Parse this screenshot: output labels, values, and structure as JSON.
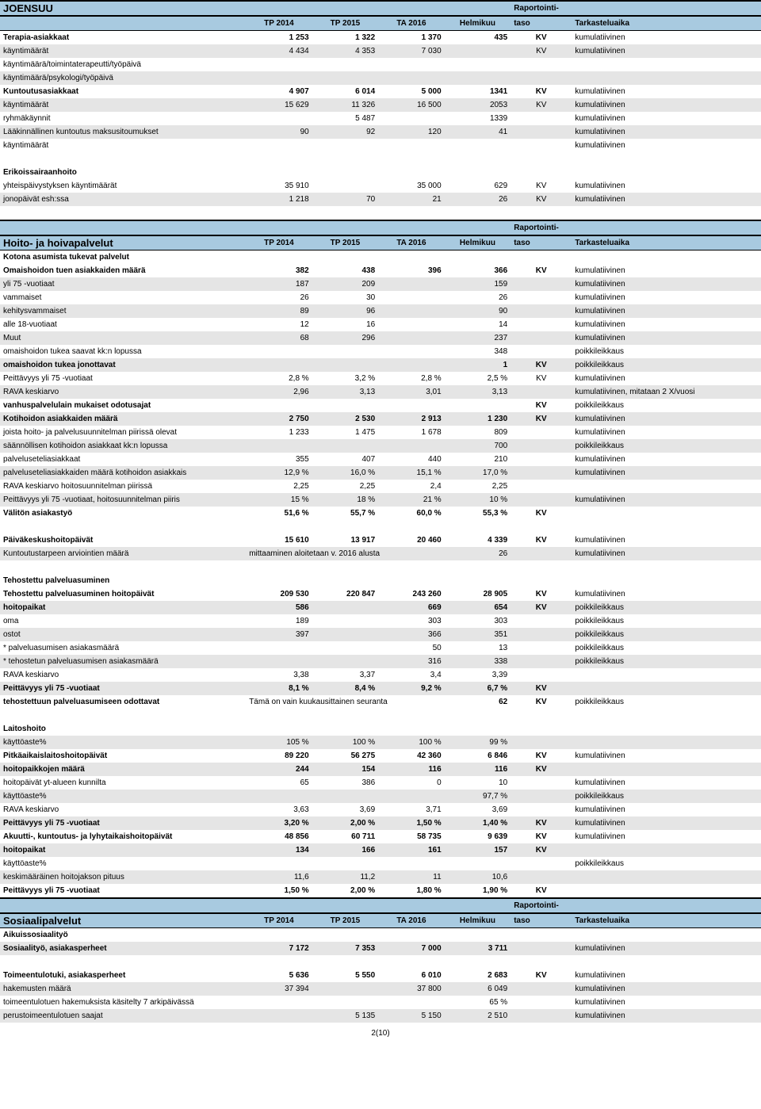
{
  "colors": {
    "header_bg": "#a8cae0",
    "shade_bg": "#e5e5e5",
    "border": "#000000"
  },
  "section1": {
    "title": "JOENSUU",
    "hdr": {
      "tp2014": "TP 2014",
      "tp2015": "TP 2015",
      "ta2016": "TA 2016",
      "helmi": "Helmikuu",
      "rapor": "Raportointi-",
      "taso": "taso",
      "tark": "Tarkasteluaika"
    },
    "rows": [
      {
        "l": "Terapia-asiakkaat",
        "b": true,
        "c1": "1 253",
        "c2": "1 322",
        "c3": "1 370",
        "c4": "435",
        "c5": "KV",
        "c6": "kumulatiivinen"
      },
      {
        "l": "käyntimäärät",
        "s": true,
        "c1": "4 434",
        "c2": "4 353",
        "c3": "7 030",
        "c4": "",
        "c5": "KV",
        "c6": "kumulatiivinen"
      },
      {
        "l": "käyntimäärä/toimintaterapeutti/työpäivä"
      },
      {
        "l": "käyntimäärä/psykologi/työpäivä",
        "s": true
      },
      {
        "l": "Kuntoutusasiakkaat",
        "b": true,
        "c1": "4 907",
        "c2": "6 014",
        "c3": "5 000",
        "c4": "1341",
        "c5": "KV",
        "c6": "kumulatiivinen"
      },
      {
        "l": "käyntimäärät",
        "s": true,
        "c1": "15 629",
        "c2": "11 326",
        "c3": "16 500",
        "c4": "2053",
        "c5": "KV",
        "c6": "kumulatiivinen"
      },
      {
        "l": "ryhmäkäynnit",
        "c2": "5 487",
        "c4": "1339",
        "c6": "kumulatiivinen"
      },
      {
        "l": "Lääkinnällinen kuntoutus maksusitoumukset",
        "s": true,
        "c1": "90",
        "c2": "92",
        "c3": "120",
        "c4": "41",
        "c6": "kumulatiivinen"
      },
      {
        "l": "käyntimäärät",
        "c6": "kumulatiivinen"
      }
    ]
  },
  "section2": {
    "heading": "Erikoissairaanhoito",
    "rows": [
      {
        "l": "yhteispäivystyksen käyntimäärät",
        "c1": "35 910",
        "c3": "35 000",
        "c4": "629",
        "c5": "KV",
        "c6": "kumulatiivinen"
      },
      {
        "l": "jonopäivät esh:ssa",
        "s": true,
        "c1": "1 218",
        "c2": "70",
        "c3": "21",
        "c4": "26",
        "c5": "KV",
        "c6": "kumulatiivinen"
      }
    ]
  },
  "section3": {
    "title": "Hoito- ja hoivapalvelut",
    "hdr": {
      "tp2014": "TP 2014",
      "tp2015": "TP 2015",
      "ta2016": "TA 2016",
      "helmi": "Helmikuu",
      "rapor": "Raportointi-",
      "taso": "taso",
      "tark": "Tarkasteluaika"
    },
    "sub1": "Kotona asumista tukevat palvelut",
    "rows1": [
      {
        "l": "Omaishoidon tuen asiakkaiden määrä",
        "b": true,
        "c1": "382",
        "c2": "438",
        "c3": "396",
        "c4": "366",
        "c5": "KV",
        "c6": "kumulatiivinen"
      },
      {
        "l": "yli 75 -vuotiaat",
        "s": true,
        "c1": "187",
        "c2": "209",
        "c4": "159",
        "c6": "kumulatiivinen"
      },
      {
        "l": "vammaiset",
        "c1": "26",
        "c2": "30",
        "c4": "26",
        "c6": "kumulatiivinen"
      },
      {
        "l": "kehitysvammaiset",
        "s": true,
        "c1": "89",
        "c2": "96",
        "c4": "90",
        "c6": "kumulatiivinen"
      },
      {
        "l": "alle 18-vuotiaat",
        "c1": "12",
        "c2": "16",
        "c4": "14",
        "c6": "kumulatiivinen"
      },
      {
        "l": "Muut",
        "s": true,
        "c1": "68",
        "c2": "296",
        "c4": "237",
        "c6": "kumulatiivinen"
      },
      {
        "l": "omaishoidon tukea saavat kk:n lopussa",
        "c4": "348",
        "c6": "poikkileikkaus"
      },
      {
        "l": "omaishoidon tukea jonottavat",
        "s": true,
        "b": true,
        "c4": "1",
        "c5": "KV",
        "c6": "poikkileikkaus"
      },
      {
        "l": "Peittävyys yli 75 -vuotiaat",
        "c1": "2,8 %",
        "c2": "3,2 %",
        "c3": "2,8 %",
        "c4": "2,5 %",
        "c5": "KV",
        "c6": "kumulatiivinen"
      },
      {
        "l": "RAVA keskiarvo",
        "s": true,
        "c1": "2,96",
        "c2": "3,13",
        "c3": "3,01",
        "c4": "3,13",
        "c6": "kumulatiivinen, mitataan 2 X/vuosi"
      },
      {
        "l": "vanhuspalvelulain mukaiset odotusajat",
        "b": true,
        "c5": "KV",
        "c6": "poikkileikkaus"
      },
      {
        "l": "Kotihoidon asiakkaiden määrä",
        "s": true,
        "b": true,
        "c1": "2 750",
        "c2": "2 530",
        "c3": "2 913",
        "c4": "1 230",
        "c5": "KV",
        "c6": "kumulatiivinen"
      },
      {
        "l": "joista hoito- ja palvelusuunnitelman piirissä olevat",
        "c1": "1 233",
        "c2": "1 475",
        "c3": "1 678",
        "c4": "809",
        "c6": "kumulatiivinen"
      },
      {
        "l": "säännöllisen kotihoidon asiakkaat kk:n lopussa",
        "s": true,
        "c4": "700",
        "c6": "poikkileikkaus"
      },
      {
        "l": "palveluseteliasiakkaat",
        "c1": "355",
        "c2": "407",
        "c3": "440",
        "c4": "210",
        "c6": "kumulatiivinen"
      },
      {
        "l": "palveluseteliasiakkaiden määrä kotihoidon asiakkais",
        "s": true,
        "c1": "12,9 %",
        "c2": "16,0 %",
        "c3": "15,1 %",
        "c4": "17,0 %",
        "c6": "kumulatiivinen"
      },
      {
        "l": "RAVA keskiarvo hoitosuunnitelman piirissä",
        "c1": "2,25",
        "c2": "2,25",
        "c3": "2,4",
        "c4": "2,25"
      },
      {
        "l": "Peittävyys yli 75 -vuotiaat, hoitosuunnitelman piiris",
        "s": true,
        "c1": "15 %",
        "c2": "18 %",
        "c3": "21 %",
        "c4": "10 %",
        "c6": "kumulatiivinen"
      },
      {
        "l": "Välitön asiakastyö",
        "b": true,
        "c1": "51,6 %",
        "c2": "55,7 %",
        "c3": "60,0 %",
        "c4": "55,3 %",
        "c5": "KV"
      }
    ],
    "rows2": [
      {
        "l": "Päiväkeskushoitopäivät",
        "b": true,
        "c1": "15 610",
        "c2": "13 917",
        "c3": "20 460",
        "c4": "4 339",
        "c5": "KV",
        "c6": "kumulatiivinen"
      },
      {
        "l": "Kuntoutustarpeen arviointien määrä",
        "s": true,
        "span": "mittaaminen aloitetaan v. 2016 alusta",
        "c4": "26",
        "c6": "kumulatiivinen"
      }
    ],
    "sub2": "Tehostettu palveluasuminen",
    "rows3": [
      {
        "l": "Tehostettu palveluasuminen hoitopäivät",
        "b": true,
        "c1": "209 530",
        "c2": "220 847",
        "c3": "243 260",
        "c4": "28 905",
        "c5": "KV",
        "c6": "kumulatiivinen"
      },
      {
        "l": "hoitopaikat",
        "s": true,
        "b": true,
        "c1": "586",
        "c3": "669",
        "c4": "654",
        "c5": "KV",
        "c6": "poikkileikkaus"
      },
      {
        "l": "oma",
        "c1": "189",
        "c3": "303",
        "c4": "303",
        "c6": "poikkileikkaus"
      },
      {
        "l": "ostot",
        "s": true,
        "c1": "397",
        "c3": "366",
        "c4": "351",
        "c6": "poikkileikkaus"
      },
      {
        "l": "  * palveluasumisen asiakasmäärä",
        "c3": "50",
        "c4": "13",
        "c6": "poikkileikkaus"
      },
      {
        "l": "  * tehostetun palveluasumisen asiakasmäärä",
        "s": true,
        "c3": "316",
        "c4": "338",
        "c6": "poikkileikkaus"
      },
      {
        "l": "RAVA keskiarvo",
        "c1": "3,38",
        "c2": "3,37",
        "c3": "3,4",
        "c4": "3,39"
      },
      {
        "l": "Peittävyys yli 75 -vuotiaat",
        "s": true,
        "b": true,
        "c1": "8,1 %",
        "c2": "8,4 %",
        "c3": "9,2 %",
        "c4": "6,7 %",
        "c5": "KV"
      },
      {
        "l": "tehostettuun palveluasumiseen odottavat",
        "b": true,
        "span": "Tämä on vain kuukausittainen seuranta",
        "c4": "62",
        "c5": "KV",
        "c6": "poikkileikkaus"
      }
    ],
    "sub3": "Laitoshoito",
    "rows4": [
      {
        "l": "käyttöaste%",
        "s": true,
        "c1": "105 %",
        "c2": "100 %",
        "c3": "100 %",
        "c4": "99 %"
      },
      {
        "l": "Pitkäaikaislaitoshoitopäivät",
        "b": true,
        "c1": "89 220",
        "c2": "56 275",
        "c3": "42 360",
        "c4": "6 846",
        "c5": "KV",
        "c6": "kumulatiivinen"
      },
      {
        "l": "hoitopaikkojen määrä",
        "s": true,
        "b": true,
        "c1": "244",
        "c2": "154",
        "c3": "116",
        "c4": "116",
        "c5": "KV"
      },
      {
        "l": "hoitopäivät yt-alueen kunnilta",
        "c1": "65",
        "c2": "386",
        "c3": "0",
        "c4": "10",
        "c6": "kumulatiivinen"
      },
      {
        "l": "käyttöaste%",
        "s": true,
        "c4": "97,7 %",
        "c6": "poikkileikkaus"
      },
      {
        "l": "RAVA keskiarvo",
        "c1": "3,63",
        "c2": "3,69",
        "c3": "3,71",
        "c4": "3,69",
        "c6": "kumulatiivinen"
      },
      {
        "l": "Peittävyys yli 75 -vuotiaat",
        "s": true,
        "b": true,
        "c1": "3,20 %",
        "c2": "2,00 %",
        "c3": "1,50 %",
        "c4": "1,40 %",
        "c5": "KV",
        "c6": "kumulatiivinen"
      },
      {
        "l": "Akuutti-, kuntoutus- ja lyhytaikaishoitopäivät",
        "b": true,
        "c1": "48 856",
        "c2": "60 711",
        "c3": "58 735",
        "c4": "9 639",
        "c5": "KV",
        "c6": "kumulatiivinen"
      },
      {
        "l": "hoitopaikat",
        "s": true,
        "b": true,
        "c1": "134",
        "c2": "166",
        "c3": "161",
        "c4": "157",
        "c5": "KV"
      },
      {
        "l": "käyttöaste%",
        "c6": "poikkileikkaus"
      },
      {
        "l": "keskimääräinen hoitojakson pituus",
        "s": true,
        "c1": "11,6",
        "c2": "11,2",
        "c3": "11",
        "c4": "10,6"
      },
      {
        "l": "Peittävyys yli 75 -vuotiaat",
        "b": true,
        "c1": "1,50 %",
        "c2": "2,00 %",
        "c3": "1,80 %",
        "c4": "1,90 %",
        "c5": "KV"
      }
    ]
  },
  "section4": {
    "title": "Sosiaalipalvelut",
    "hdr": {
      "tp2014": "TP 2014",
      "tp2015": "TP 2015",
      "ta2016": "TA 2016",
      "helmi": "Helmikuu",
      "rapor": "Raportointi-",
      "taso": "taso",
      "tark": "Tarkasteluaika"
    },
    "sub": "Aikuissosiaalityö",
    "rows": [
      {
        "l": "Sosiaalityö, asiakasperheet",
        "s": true,
        "b": true,
        "c1": "7 172",
        "c2": "7 353",
        "c3": "7 000",
        "c4": "3 711",
        "c6": "kumulatiivinen"
      }
    ],
    "rows2": [
      {
        "l": "Toimeentulotuki, asiakasperheet",
        "b": true,
        "c1": "5 636",
        "c2": "5 550",
        "c3": "6 010",
        "c4": "2 683",
        "c5": "KV",
        "c6": "kumulatiivinen"
      },
      {
        "l": "hakemusten määrä",
        "s": true,
        "c1": "37 394",
        "c3": "37 800",
        "c4": "6 049",
        "c6": "kumulatiivinen"
      },
      {
        "l": "toimeentulotuen hakemuksista käsitelty 7 arkipäivässä",
        "c4": "65 %",
        "c6": "kumulatiivinen"
      },
      {
        "l": "perustoimeentulotuen saajat",
        "s": true,
        "c2": "5 135",
        "c3": "5 150",
        "c4": "2 510",
        "c6": "kumulatiivinen"
      }
    ]
  },
  "footer": "2(10)"
}
